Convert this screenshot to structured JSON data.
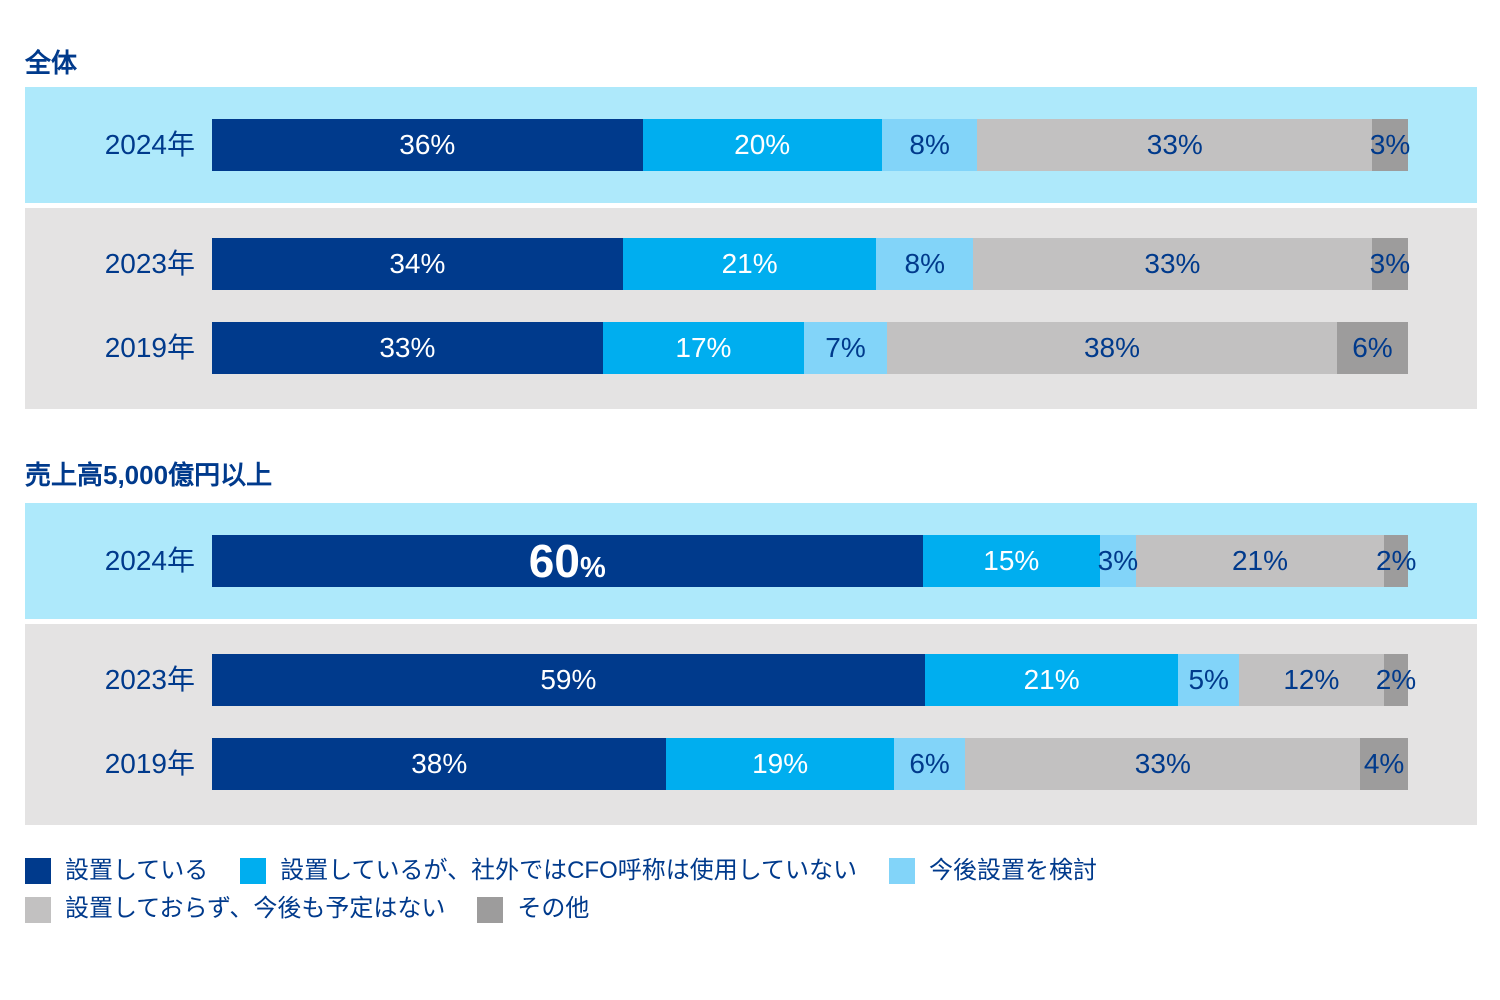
{
  "colors": {
    "navy": "#003a8c",
    "cyan": "#00aeef",
    "sky": "#82d4f9",
    "gray": "#c2c1c1",
    "dark_gray": "#9d9c9c",
    "highlight_band": "#aee9fb",
    "plain_band": "#e4e3e3",
    "white": "#ffffff"
  },
  "segment_text_color_keys": [
    "white",
    "white",
    "navy",
    "navy",
    "navy"
  ],
  "legend": {
    "items": [
      {
        "id": "installed",
        "label": "設置している",
        "color_key": "navy"
      },
      {
        "id": "installed-no-title",
        "label": "設置しているが、社外ではCFO呼称は使用していない",
        "color_key": "cyan"
      },
      {
        "id": "considering",
        "label": "今後設置を検討",
        "color_key": "sky"
      },
      {
        "id": "not-installed-no-plan",
        "label": "設置しておらず、今後も予定はない",
        "color_key": "gray"
      },
      {
        "id": "other",
        "label": "その他",
        "color_key": "dark_gray"
      }
    ],
    "rows": [
      [
        0,
        1,
        2
      ],
      [
        3,
        4
      ]
    ]
  },
  "chart_data": [
    {
      "type": "bar",
      "orientation": "horizontal",
      "stacked": true,
      "normalized": true,
      "title": "全体",
      "unit": "%",
      "xlim": [
        0,
        100
      ],
      "categories": [
        "2024年",
        "2023年",
        "2019年"
      ],
      "series_labels": [
        "設置している",
        "設置しているが、社外ではCFO呼称は使用していない",
        "今後設置を検討",
        "設置しておらず、今後も予定はない",
        "その他"
      ],
      "rows": [
        {
          "id": "overall-2024",
          "label": "2024年",
          "highlighted": true,
          "values": [
            36,
            20,
            8,
            33,
            3
          ],
          "emphasis_segment": null
        },
        {
          "id": "overall-2023",
          "label": "2023年",
          "highlighted": false,
          "values": [
            34,
            21,
            8,
            33,
            3
          ],
          "emphasis_segment": null
        },
        {
          "id": "overall-2019",
          "label": "2019年",
          "highlighted": false,
          "values": [
            33,
            17,
            7,
            38,
            6
          ],
          "emphasis_segment": null
        }
      ]
    },
    {
      "type": "bar",
      "orientation": "horizontal",
      "stacked": true,
      "normalized": true,
      "title": "売上高5,000億円以上",
      "unit": "%",
      "xlim": [
        0,
        100
      ],
      "categories": [
        "2024年",
        "2023年",
        "2019年"
      ],
      "series_labels": [
        "設置している",
        "設置しているが、社外ではCFO呼称は使用していない",
        "今後設置を検討",
        "設置しておらず、今後も予定はない",
        "その他"
      ],
      "rows": [
        {
          "id": "large-2024",
          "label": "2024年",
          "highlighted": true,
          "values": [
            60,
            15,
            3,
            21,
            2
          ],
          "emphasis_segment": 0
        },
        {
          "id": "large-2023",
          "label": "2023年",
          "highlighted": false,
          "values": [
            59,
            21,
            5,
            12,
            2
          ],
          "emphasis_segment": null
        },
        {
          "id": "large-2019",
          "label": "2019年",
          "highlighted": false,
          "values": [
            38,
            19,
            6,
            33,
            4
          ],
          "emphasis_segment": null
        }
      ]
    }
  ]
}
